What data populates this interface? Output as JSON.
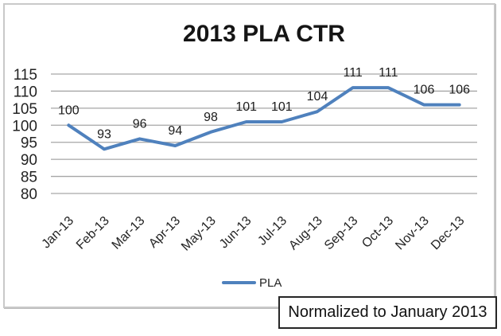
{
  "title": "2013 PLA CTR",
  "chart_data": {
    "type": "line",
    "title": "2013 PLA CTR",
    "categories": [
      "Jan-13",
      "Feb-13",
      "Mar-13",
      "Apr-13",
      "May-13",
      "Jun-13",
      "Jul-13",
      "Aug-13",
      "Sep-13",
      "Oct-13",
      "Nov-13",
      "Dec-13"
    ],
    "series": [
      {
        "name": "PLA",
        "values": [
          100,
          93,
          96,
          94,
          98,
          101,
          101,
          104,
          111,
          111,
          106,
          106
        ]
      }
    ],
    "xlabel": "",
    "ylabel": "",
    "ylim": [
      80,
      115
    ],
    "yticks": [
      80,
      85,
      90,
      95,
      100,
      105,
      110,
      115
    ],
    "grid": true,
    "data_labels": true,
    "legend_position": "bottom",
    "line_color": "#4f81bd",
    "gridline_color": "#a6a6a6"
  },
  "legend": {
    "label": "PLA"
  },
  "annotation": {
    "text": "Normalized to January 2013"
  }
}
